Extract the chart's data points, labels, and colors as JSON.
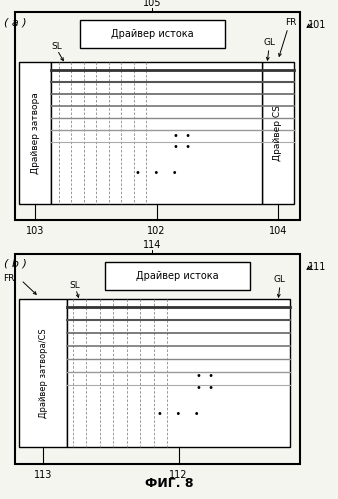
{
  "title": "ФИГ. 8",
  "bg_color": "#f5f5f0",
  "diagram_a": {
    "label": "( a )",
    "source_driver_label": "Драйвер истока",
    "gate_driver_label": "Драйвер затвора",
    "gate_driver_number": "103",
    "cs_driver_label": "Драйвер CS",
    "cs_driver_number": "104",
    "panel_number": "102",
    "outer_number": "105",
    "ref_number": "101",
    "sl_label": "SL",
    "gl_label": "GL",
    "fr_label": "FR"
  },
  "diagram_b": {
    "label": "( b )",
    "source_driver_label": "Драйвер истока",
    "gate_cs_driver_label": "Драйвер затвора/CS",
    "gate_cs_driver_number": "113",
    "panel_number": "112",
    "outer_number": "114",
    "ref_number": "111",
    "sl_label": "SL",
    "gl_label": "GL",
    "fr_label": "FR"
  }
}
